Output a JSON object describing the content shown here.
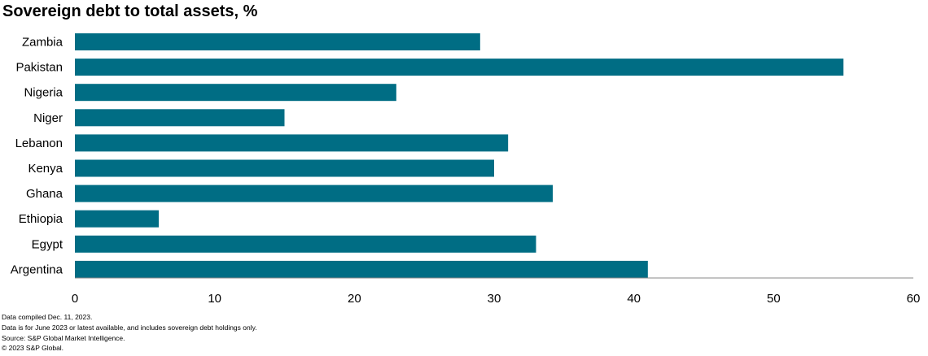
{
  "title": "Sovereign debt to total assets, %",
  "chart_data": {
    "type": "bar",
    "orientation": "horizontal",
    "title": "Sovereign debt to total assets, %",
    "categories": [
      "Zambia",
      "Pakistan",
      "Nigeria",
      "Niger",
      "Lebanon",
      "Kenya",
      "Ghana",
      "Ethiopia",
      "Egypt",
      "Argentina"
    ],
    "values": [
      29,
      55,
      23,
      15,
      31,
      30,
      34.2,
      6,
      33,
      41
    ],
    "xlim": [
      0,
      60
    ],
    "xticks": [
      0,
      10,
      20,
      30,
      40,
      50,
      60
    ],
    "xlabel": "",
    "ylabel": "",
    "grid": false,
    "bar_color": "#006d84"
  },
  "notes": [
    "Data compiled Dec. 11, 2023.",
    "Data is for June 2023 or latest available, and includes sovereign debt holdings only.",
    "Source: S&P Global Market Intelligence.",
    "© 2023 S&P Global."
  ]
}
